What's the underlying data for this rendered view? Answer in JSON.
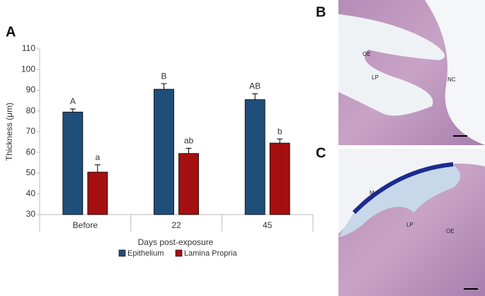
{
  "chart_data": {
    "type": "bar",
    "panel": "A",
    "ylabel": "Thickness (μm)",
    "xlabel": "Days post-exposure",
    "categories": [
      "Before",
      "22",
      "45"
    ],
    "series": [
      {
        "name": "Epithelium",
        "color": "#1f4e79",
        "values": [
          79.5,
          90.5,
          85.5
        ],
        "errors": [
          1.5,
          2.7,
          2.8
        ],
        "labels": [
          "A",
          "B",
          "AB"
        ]
      },
      {
        "name": "Lamina Propria",
        "color": "#a50f0f",
        "values": [
          50.5,
          59.5,
          64.5
        ],
        "errors": [
          3.5,
          2.5,
          2.0
        ],
        "labels": [
          "a",
          "ab",
          "b"
        ]
      }
    ],
    "ylim": [
      30,
      110
    ],
    "yticks": [
      30,
      40,
      50,
      60,
      70,
      80,
      90,
      100,
      110
    ]
  },
  "panels": [
    {
      "label": "B",
      "annotations": [
        "OE",
        "LP",
        "NC"
      ]
    },
    {
      "label": "C",
      "annotations": [
        "M",
        "LP",
        "OE"
      ]
    }
  ]
}
